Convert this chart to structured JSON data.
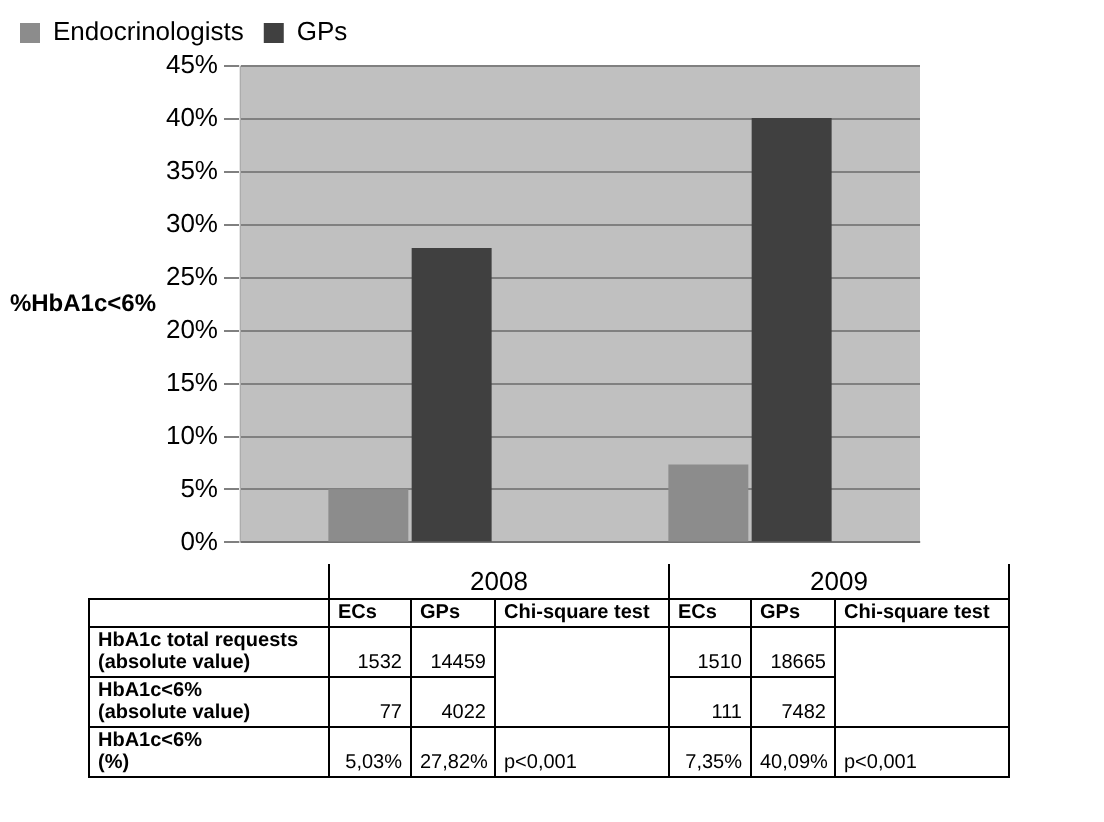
{
  "chart_data": {
    "type": "bar",
    "ylabel": "%HbA1c<6%",
    "categories": [
      "2008",
      "2009"
    ],
    "series": [
      {
        "name": "Endocrinologists",
        "color": "#8c8c8c",
        "values": [
          5.03,
          7.35
        ]
      },
      {
        "name": "GPs",
        "color": "#404040",
        "values": [
          27.82,
          40.09
        ]
      }
    ],
    "ylim": [
      0,
      45
    ],
    "yticks": [
      {
        "value": 0,
        "label": "0%"
      },
      {
        "value": 5,
        "label": "5%"
      },
      {
        "value": 10,
        "label": "10%"
      },
      {
        "value": 15,
        "label": "15%"
      },
      {
        "value": 20,
        "label": "20%"
      },
      {
        "value": 25,
        "label": "25%"
      },
      {
        "value": 30,
        "label": "30%"
      },
      {
        "value": 35,
        "label": "35%"
      },
      {
        "value": 40,
        "label": "40%"
      },
      {
        "value": 45,
        "label": "45%"
      }
    ],
    "grid": "y",
    "legend": "top left",
    "annotations": [
      "ECs",
      "GPs",
      "Chi-square test",
      "ECs",
      "GPs",
      "Chi-square test",
      "HbA1c total requests\n(absolute value)",
      "1532",
      "14459",
      "1510",
      "18665",
      "HbA1c<6%\n(absolute value)",
      "77",
      "4022",
      "111",
      "7482",
      "HbA1c<6%\n(%)",
      "5,03%",
      "27,82%",
      "p<0,001",
      "7,35%",
      "40,09%",
      "p<0,001"
    ]
  }
}
